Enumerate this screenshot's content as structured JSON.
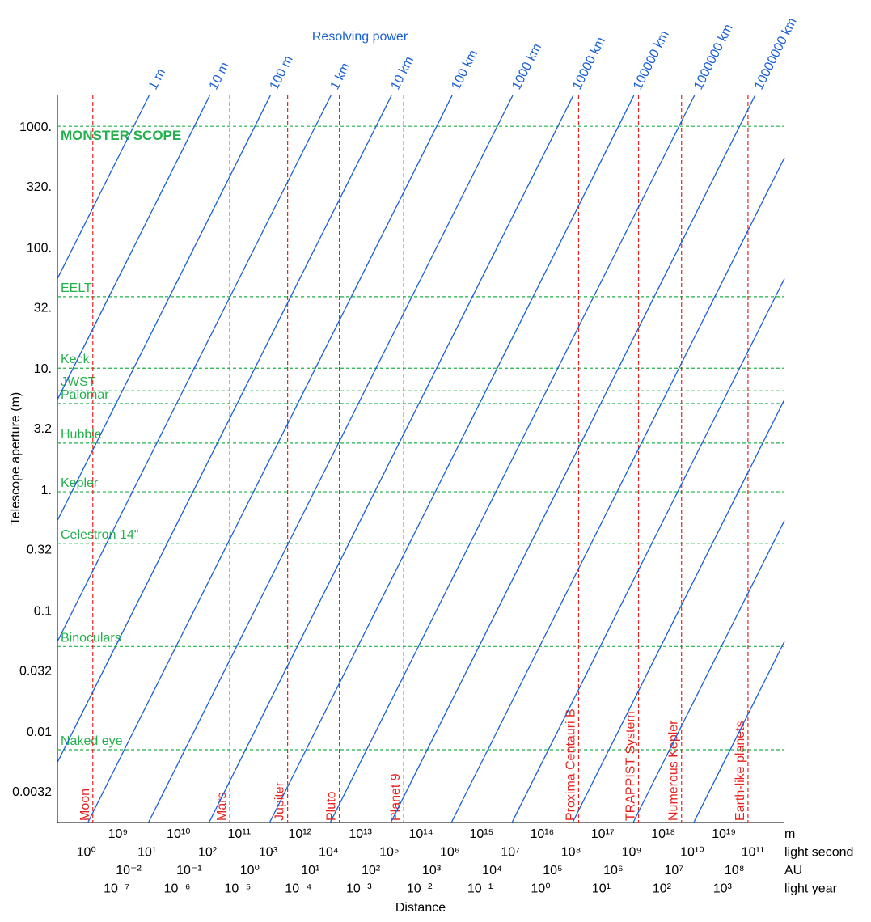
{
  "chart_data": {
    "type": "line",
    "title": "Resolving power",
    "x_label": "Distance",
    "y_label": "Telescope aperture (m)",
    "log_x": true,
    "log_y": true,
    "xlim": [
      100000000.0,
      1e+20
    ],
    "ylim": [
      0.00175,
      1800
    ],
    "yticks": [
      {
        "value": 1000,
        "label": "1000."
      },
      {
        "value": 320,
        "label": "320."
      },
      {
        "value": 100,
        "label": "100."
      },
      {
        "value": 32,
        "label": "32."
      },
      {
        "value": 10,
        "label": "10."
      },
      3.2,
      {
        "value": 1,
        "label": "1."
      },
      0.32,
      0.1,
      0.032,
      0.01,
      0.0032
    ],
    "x_axes": [
      {
        "unit": "m",
        "ticks": [
          {
            "value": 1000000000.0,
            "label": "10⁹"
          },
          {
            "value": 10000000000.0,
            "label": "10¹⁰"
          },
          {
            "value": 100000000000.0,
            "label": "10¹¹"
          },
          {
            "value": 1000000000000.0,
            "label": "10¹²"
          },
          {
            "value": 10000000000000.0,
            "label": "10¹³"
          },
          {
            "value": 100000000000000.0,
            "label": "10¹⁴"
          },
          {
            "value": 1000000000000000.0,
            "label": "10¹⁵"
          },
          {
            "value": 1e+16,
            "label": "10¹⁶"
          },
          {
            "value": 1e+17,
            "label": "10¹⁷"
          },
          {
            "value": 1e+18,
            "label": "10¹⁸"
          },
          {
            "value": 1e+19,
            "label": "10¹⁹"
          }
        ]
      },
      {
        "unit": "light second",
        "ticks": [
          {
            "value": 299792458.0,
            "label": "10⁰"
          },
          {
            "value": 2997924580.0,
            "label": "10¹"
          },
          {
            "value": 29979245800.0,
            "label": "10²"
          },
          {
            "value": 299792458000.0,
            "label": "10³"
          },
          {
            "value": 2997924580000.0,
            "label": "10⁴"
          },
          {
            "value": 29979245800000.0,
            "label": "10⁵"
          },
          {
            "value": 299792458000000.0,
            "label": "10⁶"
          },
          {
            "value": 2997924580000000.0,
            "label": "10⁷"
          },
          {
            "value": 2.99792458e+16,
            "label": "10⁸"
          },
          {
            "value": 2.99792458e+17,
            "label": "10⁹"
          },
          {
            "value": 2.99792458e+18,
            "label": "10¹⁰"
          },
          {
            "value": 2.99792458e+19,
            "label": "10¹¹"
          }
        ]
      },
      {
        "unit": "AU",
        "ticks": [
          {
            "value": 1495978707.0,
            "label": "10⁻²"
          },
          {
            "value": 14959787070.0,
            "label": "10⁻¹"
          },
          {
            "value": 149597870700.0,
            "label": "10⁰"
          },
          {
            "value": 1495978707000.0,
            "label": "10¹"
          },
          {
            "value": 14959787070000.0,
            "label": "10²"
          },
          {
            "value": 149597870700000.0,
            "label": "10³"
          },
          {
            "value": 1495978707000000.0,
            "label": "10⁴"
          },
          {
            "value": 1.495978707e+16,
            "label": "10⁵"
          },
          {
            "value": 1.495978707e+17,
            "label": "10⁶"
          },
          {
            "value": 1.495978707e+18,
            "label": "10⁷"
          },
          {
            "value": 1.495978707e+19,
            "label": "10⁸"
          }
        ]
      },
      {
        "unit": "light year",
        "ticks": [
          {
            "value": 946070000.0,
            "label": "10⁻⁷"
          },
          {
            "value": 9460700000.0,
            "label": "10⁻⁶"
          },
          {
            "value": 94607000000.0,
            "label": "10⁻⁵"
          },
          {
            "value": 946070000000.0,
            "label": "10⁻⁴"
          },
          {
            "value": 9460700000000.0,
            "label": "10⁻³"
          },
          {
            "value": 94607000000000.0,
            "label": "10⁻²"
          },
          {
            "value": 946070000000000.0,
            "label": "10⁻¹"
          },
          {
            "value": 9460700000000000.0,
            "label": "10⁰"
          },
          {
            "value": 9.4607e+16,
            "label": "10¹"
          },
          {
            "value": 9.4607e+17,
            "label": "10²"
          },
          {
            "value": 9.4607e+18,
            "label": "10³"
          }
        ]
      }
    ],
    "series": [
      {
        "name": "1 m",
        "color": "#1a5fd8",
        "x": [
          100000000.0,
          3270000000.0
        ],
        "values": [
          55,
          1800
        ]
      },
      {
        "name": "10 m",
        "color": "#1a5fd8",
        "x": [
          100000000.0,
          32700000000.0
        ],
        "values": [
          5.5,
          1800
        ]
      },
      {
        "name": "100 m",
        "color": "#1a5fd8",
        "x": [
          100000000.0,
          327000000000.0
        ],
        "values": [
          0.55,
          1800
        ]
      },
      {
        "name": "1 km",
        "color": "#1a5fd8",
        "x": [
          100000000.0,
          3270000000000.0
        ],
        "values": [
          0.055,
          1800
        ]
      },
      {
        "name": "10 km",
        "color": "#1a5fd8",
        "x": [
          100000000.0,
          32700000000000.0
        ],
        "values": [
          0.0055,
          1800
        ]
      },
      {
        "name": "100 km",
        "color": "#1a5fd8",
        "x": [
          318000000.0,
          327000000000000.0
        ],
        "values": [
          0.00175,
          1800
        ]
      },
      {
        "name": "1000 km",
        "color": "#1a5fd8",
        "x": [
          3180000000.0,
          3270000000000000.0
        ],
        "values": [
          0.00175,
          1800
        ]
      },
      {
        "name": "10000 km",
        "color": "#1a5fd8",
        "x": [
          31800000000.0,
          3.27e+16
        ],
        "values": [
          0.00175,
          1800
        ]
      },
      {
        "name": "100000 km",
        "color": "#1a5fd8",
        "x": [
          318000000000.0,
          3.27e+17
        ],
        "values": [
          0.00175,
          1800
        ]
      },
      {
        "name": "1000000 km",
        "color": "#1a5fd8",
        "x": [
          3180000000000.0,
          3.27e+18
        ],
        "values": [
          0.00175,
          1800
        ]
      },
      {
        "name": "10000000 km",
        "color": "#1a5fd8",
        "x": [
          31800000000000.0,
          3.27e+19
        ],
        "values": [
          0.00175,
          1800
        ]
      },
      {
        "color": "#1a5fd8",
        "x": [
          318000000000000.0,
          1e+20
        ],
        "values": [
          0.00175,
          550
        ]
      },
      {
        "color": "#1a5fd8",
        "x": [
          3180000000000000.0,
          1e+20
        ],
        "values": [
          0.00175,
          55
        ]
      },
      {
        "color": "#1a5fd8",
        "x": [
          3.18e+16,
          1e+20
        ],
        "values": [
          0.00175,
          5.5
        ]
      },
      {
        "color": "#1a5fd8",
        "x": [
          3.18e+17,
          1e+20
        ],
        "values": [
          0.00175,
          0.55
        ]
      },
      {
        "color": "#1a5fd8",
        "x": [
          3.18e+18,
          1e+20
        ],
        "values": [
          0.00175,
          0.055
        ]
      }
    ],
    "telescopes": {
      "color": "#22b14c",
      "items": [
        {
          "name": "MONSTER SCOPE",
          "value": 1000
        },
        {
          "name": "EELT",
          "value": 39
        },
        {
          "name": "Keck",
          "value": 10
        },
        {
          "name": "JWST",
          "value": 6.5
        },
        {
          "name": "Palomar",
          "value": 5.1
        },
        {
          "name": "Hubble",
          "value": 2.4
        },
        {
          "name": "Kepler",
          "value": 0.95
        },
        {
          "name": "Celestron 14\"",
          "value": 0.356
        },
        {
          "name": "Binoculars",
          "value": 0.05
        },
        {
          "name": "Naked eye",
          "value": 0.007
        }
      ]
    },
    "objects": {
      "color": "#e8221f",
      "items": [
        {
          "name": "Moon",
          "value": 384000000.0
        },
        {
          "name": "Mars",
          "value": 70000000000.0
        },
        {
          "name": "Jupiter",
          "value": 630000000000.0
        },
        {
          "name": "Pluto",
          "value": 4500000000000.0
        },
        {
          "name": "Planet 9",
          "value": 52000000000000.0
        },
        {
          "name": "Proxima Centauri B",
          "value": 4e+16
        },
        {
          "name": "TRAPPIST System",
          "value": 3.9e+17
        },
        {
          "name": "Numerous Kepler",
          "value": 2e+18
        },
        {
          "name": "Earth-like planets",
          "value": 2.5e+19
        }
      ]
    }
  }
}
